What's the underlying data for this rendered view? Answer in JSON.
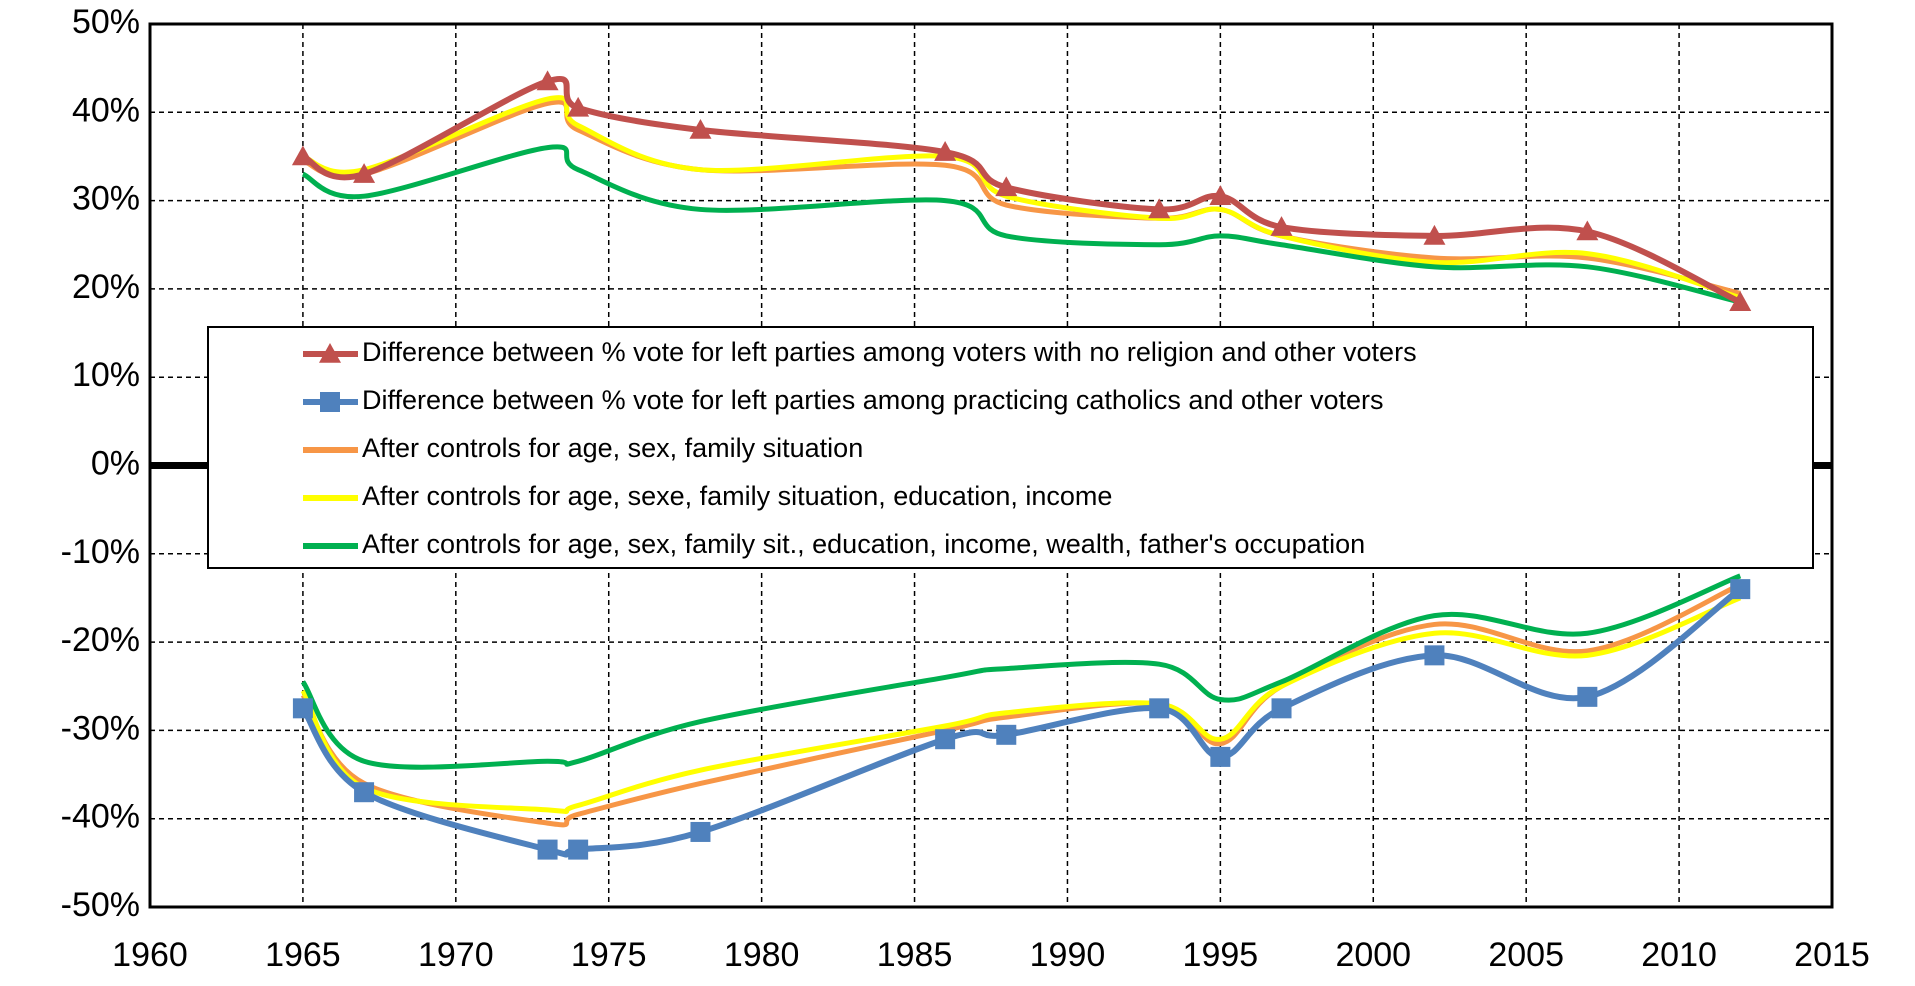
{
  "chart_data": {
    "type": "line",
    "x": [
      1965,
      1967,
      1973,
      1974,
      1978,
      1986,
      1988,
      1993,
      1995,
      1997,
      2002,
      2007,
      2012
    ],
    "xlim": [
      1960,
      2015
    ],
    "xticks": [
      1960,
      1965,
      1970,
      1975,
      1980,
      1985,
      1990,
      1995,
      2000,
      2005,
      2010,
      2015
    ],
    "ylim": [
      -50,
      50
    ],
    "yticks": [
      {
        "value": -50,
        "label": "-50%"
      },
      {
        "value": -40,
        "label": "-40%"
      },
      {
        "value": -30,
        "label": "-30%"
      },
      {
        "value": -20,
        "label": "-20%"
      },
      {
        "value": -10,
        "label": "-10%"
      },
      {
        "value": 0,
        "label": "0%"
      },
      {
        "value": 10,
        "label": "10%"
      },
      {
        "value": 20,
        "label": "20%"
      },
      {
        "value": 30,
        "label": "30%"
      },
      {
        "value": 40,
        "label": "40%"
      },
      {
        "value": 50,
        "label": "50%"
      }
    ],
    "grid": true,
    "series": [
      {
        "name": "Difference between % vote for left parties among voters with no religion and other voters",
        "color": "#c0504d",
        "marker": "triangle",
        "values": [
          35,
          33,
          43.5,
          40.5,
          38,
          35.5,
          31.5,
          29,
          30.5,
          27,
          26,
          26.5,
          18.5
        ]
      },
      {
        "name": "Difference between % vote for left parties among practicing catholics and other voters",
        "color": "#4f81bd",
        "marker": "square",
        "values": [
          -27.5,
          -37,
          -43.5,
          -43.5,
          -41.5,
          -31,
          -30.5,
          -27.5,
          -33,
          -27.5,
          -21.5,
          -26.2,
          -14
        ]
      },
      {
        "name": "After controls for age, sex, family situation",
        "color": "#f79646",
        "values": [
          [
            34.5,
            33,
            41,
            38,
            33.5,
            34,
            29.5,
            28,
            29,
            26,
            23.5,
            23.5,
            19.5
          ],
          [
            -26,
            -36,
            -40.5,
            -39.5,
            -36,
            -30,
            -28.5,
            -27,
            -31.5,
            -25,
            -18,
            -21,
            -13.5
          ]
        ]
      },
      {
        "name": "After controls for age, sexe, family situation, education, income",
        "color": "#ffff00",
        "values": [
          [
            35,
            33.5,
            41.5,
            38.5,
            33.5,
            35,
            30.5,
            28,
            29,
            26,
            23,
            24,
            19
          ],
          [
            -25.5,
            -36.5,
            -39,
            -38.5,
            -34.5,
            -29.5,
            -28,
            -27,
            -31,
            -25,
            -19,
            -21.5,
            -15
          ]
        ]
      },
      {
        "name": "After controls for age, sex, family sit., education, income, wealth, father's occupation",
        "color": "#00b050",
        "values": [
          [
            33,
            30.5,
            36,
            33.5,
            29,
            30,
            26,
            25,
            26,
            25,
            22.5,
            22.5,
            18.5
          ],
          [
            -24.5,
            -33.5,
            -33.5,
            -33.5,
            -29,
            -24,
            -23,
            -22.5,
            -26.5,
            -24.5,
            -17,
            -19,
            -12.5
          ]
        ]
      }
    ]
  }
}
